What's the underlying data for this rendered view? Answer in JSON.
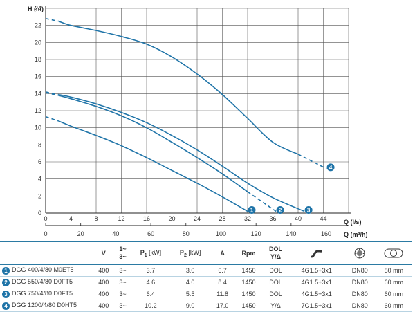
{
  "chart_data": {
    "type": "line",
    "ylabel": "H (m)",
    "xlabel": "Q (l/s)",
    "x2label": "Q (m³/h)",
    "xlim": [
      0,
      48
    ],
    "ylim": [
      0,
      24
    ],
    "x_ticks": [
      0,
      4,
      8,
      12,
      16,
      20,
      24,
      28,
      32,
      36,
      40,
      44
    ],
    "y_ticks": [
      0,
      2,
      4,
      6,
      8,
      10,
      12,
      14,
      16,
      18,
      20,
      22,
      24
    ],
    "x2_ticks": [
      0,
      20,
      40,
      60,
      80,
      100,
      120,
      140,
      160
    ],
    "grid": true,
    "color": "#1f74a8",
    "series": [
      {
        "name": "1",
        "dashed_to": 0,
        "x": [
          0,
          2,
          4,
          8,
          12,
          16,
          20,
          24,
          28,
          32
        ],
        "y": [
          11.3,
          10.8,
          10.2,
          9.1,
          7.9,
          6.5,
          5.0,
          3.5,
          1.9,
          0.2
        ]
      },
      {
        "name": "2",
        "dashed_to": 1,
        "x": [
          0,
          2,
          4,
          8,
          12,
          16,
          20,
          24,
          28,
          32,
          36.5
        ],
        "y": [
          14.1,
          13.8,
          13.4,
          12.5,
          11.4,
          10.0,
          8.3,
          6.5,
          4.6,
          2.5,
          0.2
        ]
      },
      {
        "name": "3",
        "dashed_to": 0,
        "x": [
          0,
          2,
          4,
          8,
          12,
          16,
          20,
          24,
          28,
          32,
          36,
          41
        ],
        "y": [
          14.2,
          13.9,
          13.6,
          12.8,
          11.8,
          10.6,
          9.1,
          7.4,
          5.5,
          3.5,
          1.8,
          0.2
        ]
      },
      {
        "name": "4",
        "dashed_to": 1,
        "x": [
          0,
          2,
          4,
          8,
          12,
          16,
          20,
          24,
          28,
          32,
          36,
          40,
          44.5
        ],
        "y": [
          22.8,
          22.5,
          22.0,
          21.4,
          20.7,
          19.8,
          18.3,
          16.3,
          13.9,
          11.1,
          8.3,
          6.9,
          5.2
        ]
      }
    ]
  },
  "table": {
    "headers": {
      "voltage": "V",
      "phase_top": "1~",
      "phase_bottom": "3~",
      "p1": "P",
      "p1_sub": "1",
      "p1_unit": "[kW]",
      "p2": "P",
      "p2_sub": "2",
      "p2_unit": "[kW]",
      "amps": "A",
      "rpm": "Rpm",
      "start_top": "DOL",
      "start_bottom": "Y/Δ",
      "cable_icon": "cable-icon",
      "outlet_icon": "outlet-flange-icon",
      "passage_icon": "solids-passage-icon"
    },
    "rows": [
      {
        "num": "1",
        "model": "DGG 400/4/80 M0ET5",
        "v": "400",
        "phase": "3~",
        "p1": "3.7",
        "p2": "3.0",
        "a": "6.7",
        "rpm": "1450",
        "start": "DOL",
        "cable": "4G1.5+3x1",
        "dn": "DN80",
        "passage": "80 mm"
      },
      {
        "num": "2",
        "model": "DGG 550/4/80 D0FT5",
        "v": "400",
        "phase": "3~",
        "p1": "4.6",
        "p2": "4.0",
        "a": "8.4",
        "rpm": "1450",
        "start": "DOL",
        "cable": "4G1.5+3x1",
        "dn": "DN80",
        "passage": "60 mm"
      },
      {
        "num": "3",
        "model": "DGG 750/4/80 D0FT5",
        "v": "400",
        "phase": "3~",
        "p1": "6.4",
        "p2": "5.5",
        "a": "11.8",
        "rpm": "1450",
        "start": "DOL",
        "cable": "4G1.5+3x1",
        "dn": "DN80",
        "passage": "60 mm"
      },
      {
        "num": "4",
        "model": "DGG 1200/4/80 D0HT5",
        "v": "400",
        "phase": "3~",
        "p1": "10.2",
        "p2": "9.0",
        "a": "17.0",
        "rpm": "1450",
        "start": "Y/Δ",
        "cable": "7G1.5+3x1",
        "dn": "DN80",
        "passage": "60 mm"
      }
    ]
  }
}
